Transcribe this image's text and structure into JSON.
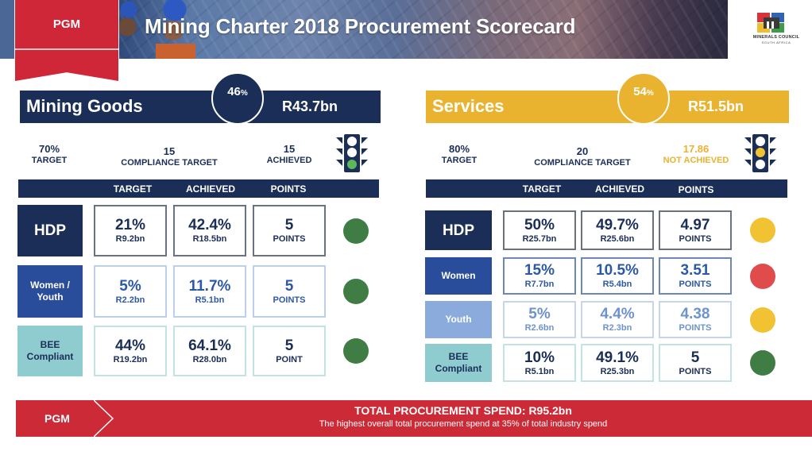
{
  "header": {
    "tag": "PGM",
    "title": "Mining Charter 2018 Procurement Scorecard",
    "logo_line1": "MINERALS COUNCIL",
    "logo_line2": "SOUTH AFRICA"
  },
  "colors": {
    "navy": "#1b2e57",
    "blue": "#2a4d9b",
    "light_blue": "#8aabdc",
    "teal": "#8fccd0",
    "gold": "#e9b32f",
    "red": "#cd2a37",
    "green": "#3f7d44",
    "amber": "#f1c232",
    "dot_red": "#e04b4b"
  },
  "mining_goods": {
    "name": "Mining Goods",
    "share": "46",
    "share_unit": "%",
    "amount": "R43.7bn",
    "target_value": "70%",
    "target_label": "TARGET",
    "compliance_value": "15",
    "compliance_label": "COMPLIANCE TARGET",
    "result_value": "15",
    "result_label": "ACHIEVED",
    "traffic_light": "green",
    "columns": [
      "TARGET",
      "ACHIEVED",
      "POINTS"
    ],
    "rows": [
      {
        "label": "HDP",
        "target": "21%",
        "target_amt": "R9.2bn",
        "achieved": "42.4%",
        "achieved_amt": "R18.5bn",
        "points": "5",
        "points_label": "POINTS",
        "status": "green"
      },
      {
        "label": "Women / Youth",
        "target": "5%",
        "target_amt": "R2.2bn",
        "achieved": "11.7%",
        "achieved_amt": "R5.1bn",
        "points": "5",
        "points_label": "POINTS",
        "status": "green"
      },
      {
        "label": "BEE Compliant",
        "target": "44%",
        "target_amt": "R19.2bn",
        "achieved": "64.1%",
        "achieved_amt": "R28.0bn",
        "points": "5",
        "points_label": "POINT",
        "status": "green"
      }
    ]
  },
  "services": {
    "name": "Services",
    "share": "54",
    "share_unit": "%",
    "amount": "R51.5bn",
    "target_value": "80%",
    "target_label": "TARGET",
    "compliance_value": "20",
    "compliance_label": "COMPLIANCE TARGET",
    "result_value": "17.86",
    "result_label": "NOT ACHIEVED",
    "traffic_light": "amber",
    "columns": [
      "TARGET",
      "ACHIEVED",
      "POINTS"
    ],
    "rows": [
      {
        "label": "HDP",
        "target": "50%",
        "target_amt": "R25.7bn",
        "achieved": "49.7%",
        "achieved_amt": "R25.6bn",
        "points": "4.97",
        "points_label": "POINTS",
        "status": "amber"
      },
      {
        "label": "Women",
        "target": "15%",
        "target_amt": "R7.7bn",
        "achieved": "10.5%",
        "achieved_amt": "R5.4bn",
        "points": "3.51",
        "points_label": "POINTS",
        "status": "red"
      },
      {
        "label": "Youth",
        "target": "5%",
        "target_amt": "R2.6bn",
        "achieved": "4.4%",
        "achieved_amt": "R2.3bn",
        "points": "4.38",
        "points_label": "POINTS",
        "status": "amber"
      },
      {
        "label": "BEE Compliant",
        "target": "10%",
        "target_amt": "R5.1bn",
        "achieved": "49.1%",
        "achieved_amt": "R25.3bn",
        "points": "5",
        "points_label": "POINTS",
        "status": "green"
      }
    ]
  },
  "footer": {
    "tag": "PGM",
    "headline": "TOTAL PROCUREMENT SPEND: R95.2bn",
    "subline": "The highest overall total  procurement spend at 35% of total industry spend"
  }
}
